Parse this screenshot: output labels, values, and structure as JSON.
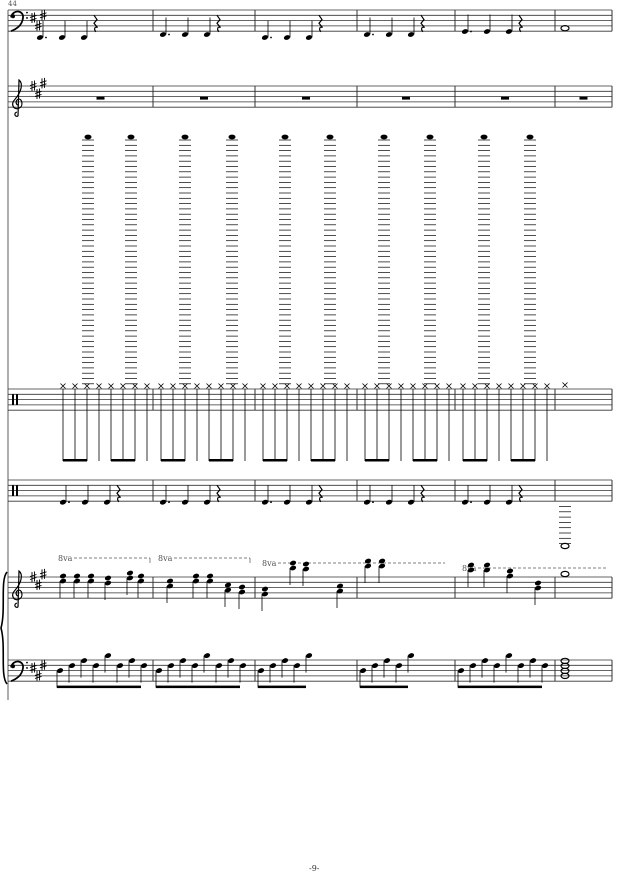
{
  "score": {
    "measure_number": "44",
    "page_number": "-9-",
    "key_signature": "A major (3 sharps)",
    "ottava_label": "8va",
    "staves": [
      "bass-clef staff",
      "treble-clef staff",
      "percussion staff",
      "percussion staff",
      "piano treble",
      "piano bass"
    ]
  }
}
